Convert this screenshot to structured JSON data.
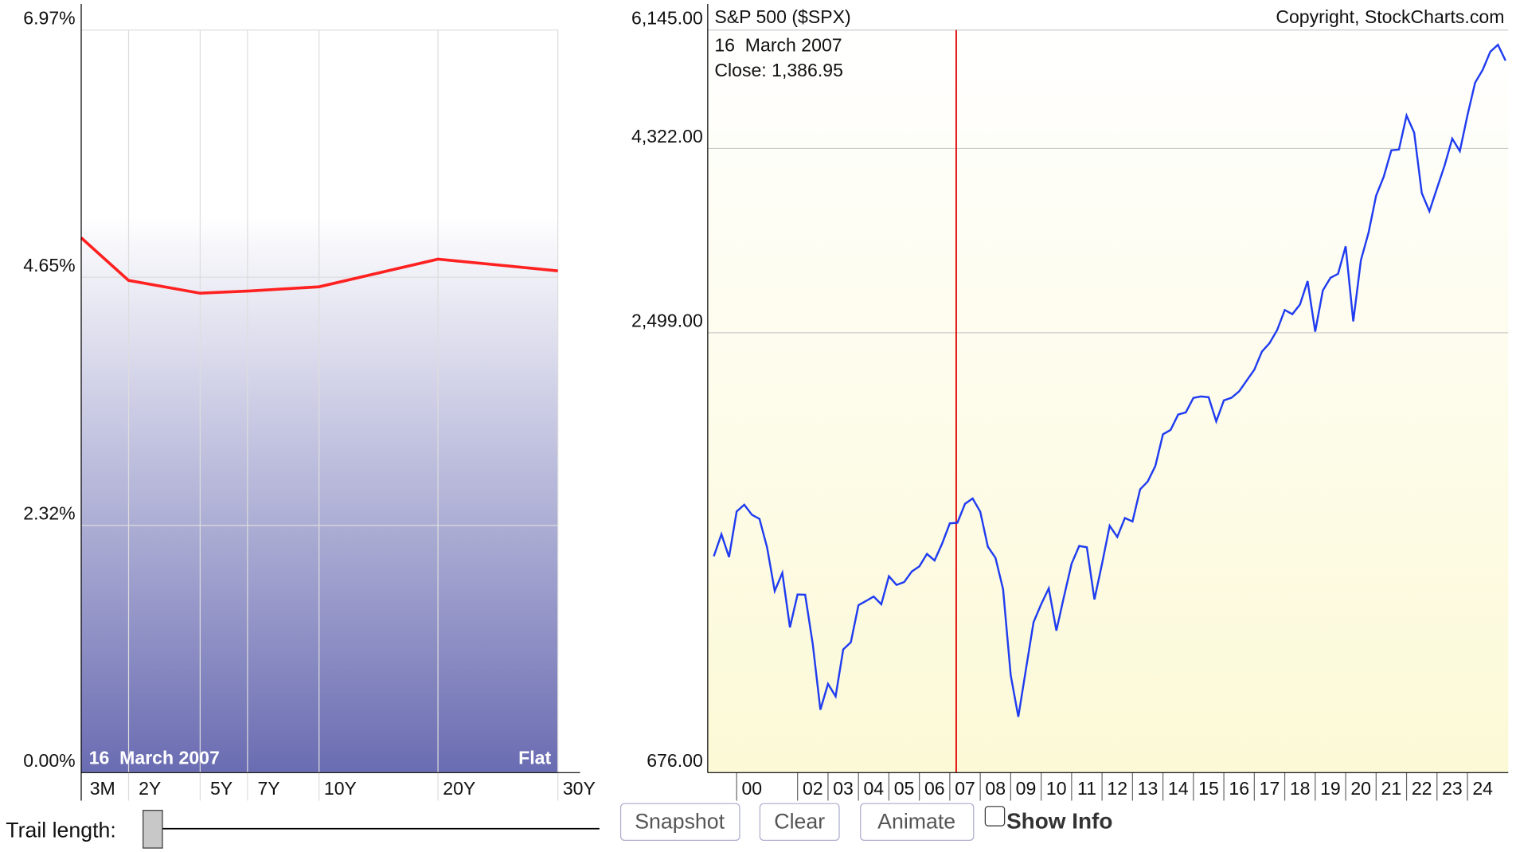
{
  "chart_data": [
    {
      "type": "line",
      "categories": [
        "3M",
        "2Y",
        "5Y",
        "7Y",
        "10Y",
        "20Y",
        "30Y"
      ],
      "series": [
        {
          "color": "#ff2020",
          "values": [
            5.02,
            4.62,
            4.5,
            4.52,
            4.56,
            4.82,
            4.71
          ]
        }
      ],
      "ylim": [
        0,
        6.97
      ],
      "yticks": [
        {
          "value": 0,
          "label": "0.00%"
        },
        {
          "value": 2.32,
          "label": "2.32%"
        },
        {
          "value": 4.65,
          "label": "4.65%"
        },
        {
          "value": 6.97,
          "label": "6.97%"
        }
      ],
      "grid": true,
      "date_label": "16  March 2007",
      "shape_label": "Flat"
    },
    {
      "type": "line",
      "title": "S&P 500 ($SPX)",
      "copyright": "Copyright, StockCharts.com",
      "date_label": "16  March 2007",
      "close_label": "Close: 1,386.95",
      "log_scale": true,
      "grid": true,
      "cursor": {
        "x": 2007.21,
        "color": "#e00000"
      },
      "x": [
        1999.25,
        1999.5,
        1999.75,
        2000,
        2000.25,
        2000.5,
        2000.75,
        2001,
        2001.25,
        2001.5,
        2001.75,
        2002,
        2002.25,
        2002.5,
        2002.75,
        2003,
        2003.25,
        2003.5,
        2003.75,
        2004,
        2004.25,
        2004.5,
        2004.75,
        2005,
        2005.25,
        2005.5,
        2005.75,
        2006,
        2006.25,
        2006.5,
        2006.75,
        2007,
        2007.25,
        2007.5,
        2007.75,
        2008,
        2008.25,
        2008.5,
        2008.75,
        2009,
        2009.25,
        2009.5,
        2009.75,
        2010,
        2010.25,
        2010.5,
        2010.75,
        2011,
        2011.25,
        2011.5,
        2011.75,
        2012,
        2012.25,
        2012.5,
        2012.75,
        2013,
        2013.25,
        2013.5,
        2013.75,
        2014,
        2014.25,
        2014.5,
        2014.75,
        2015,
        2015.25,
        2015.5,
        2015.75,
        2016,
        2016.25,
        2016.5,
        2016.75,
        2017,
        2017.25,
        2017.5,
        2017.75,
        2018,
        2018.25,
        2018.5,
        2018.75,
        2019,
        2019.25,
        2019.5,
        2019.75,
        2020,
        2020.25,
        2020.5,
        2020.75,
        2021,
        2021.25,
        2021.5,
        2021.75,
        2022,
        2022.25,
        2022.5,
        2022.75,
        2023,
        2023.25,
        2023.5,
        2023.75,
        2024,
        2024.25,
        2024.5,
        2024.75,
        2025,
        2025.25
      ],
      "series": [
        {
          "color": "#1f3cf0",
          "values": [
            1286,
            1373,
            1283,
            1469,
            1499,
            1455,
            1437,
            1320,
            1160,
            1224,
            1041,
            1148,
            1147,
            990,
            815,
            880,
            848,
            975,
            996,
            1112,
            1126,
            1141,
            1115,
            1212,
            1181,
            1191,
            1229,
            1248,
            1295,
            1270,
            1336,
            1418,
            1421,
            1503,
            1527,
            1468,
            1323,
            1280,
            1166,
            903,
            798,
            919,
            1057,
            1115,
            1169,
            1031,
            1141,
            1258,
            1326,
            1321,
            1131,
            1258,
            1408,
            1362,
            1441,
            1426,
            1569,
            1606,
            1682,
            1848,
            1872,
            1960,
            1972,
            2059,
            2068,
            2063,
            1920,
            2044,
            2060,
            2099,
            2168,
            2239,
            2363,
            2423,
            2519,
            2674,
            2641,
            2718,
            2914,
            2507,
            2834,
            2942,
            2977,
            3231,
            2585,
            3100,
            3363,
            3756,
            3973,
            4298,
            4308,
            4766,
            4530,
            3785,
            3586,
            3840,
            4109,
            4450,
            4288,
            4770,
            5254,
            5460,
            5762,
            5882,
            5612
          ]
        }
      ],
      "xlim": [
        1999.05,
        2025.34
      ],
      "xticks": [
        {
          "value": 2000,
          "label": "00"
        },
        {
          "value": 2002,
          "label": "02"
        },
        {
          "value": 2003,
          "label": "03"
        },
        {
          "value": 2004,
          "label": "04"
        },
        {
          "value": 2005,
          "label": "05"
        },
        {
          "value": 2006,
          "label": "06"
        },
        {
          "value": 2007,
          "label": "07"
        },
        {
          "value": 2008,
          "label": "08"
        },
        {
          "value": 2009,
          "label": "09"
        },
        {
          "value": 2010,
          "label": "10"
        },
        {
          "value": 2011,
          "label": "11"
        },
        {
          "value": 2012,
          "label": "12"
        },
        {
          "value": 2013,
          "label": "13"
        },
        {
          "value": 2014,
          "label": "14"
        },
        {
          "value": 2015,
          "label": "15"
        },
        {
          "value": 2016,
          "label": "16"
        },
        {
          "value": 2017,
          "label": "17"
        },
        {
          "value": 2018,
          "label": "18"
        },
        {
          "value": 2019,
          "label": "19"
        },
        {
          "value": 2020,
          "label": "20"
        },
        {
          "value": 2021,
          "label": "21"
        },
        {
          "value": 2022,
          "label": "22"
        },
        {
          "value": 2023,
          "label": "23"
        },
        {
          "value": 2024,
          "label": "24"
        }
      ],
      "ylim": [
        676,
        6145
      ],
      "yticks": [
        {
          "value": 676,
          "label": "676.00"
        },
        {
          "value": 2499,
          "label": "2,499.00"
        },
        {
          "value": 4322,
          "label": "4,322.00"
        },
        {
          "value": 6145,
          "label": "6,145.00"
        }
      ]
    }
  ],
  "controls": {
    "trail_label": "Trail length:",
    "buttons": [
      "Snapshot",
      "Clear",
      "Animate"
    ],
    "checkbox": "Show Info"
  }
}
